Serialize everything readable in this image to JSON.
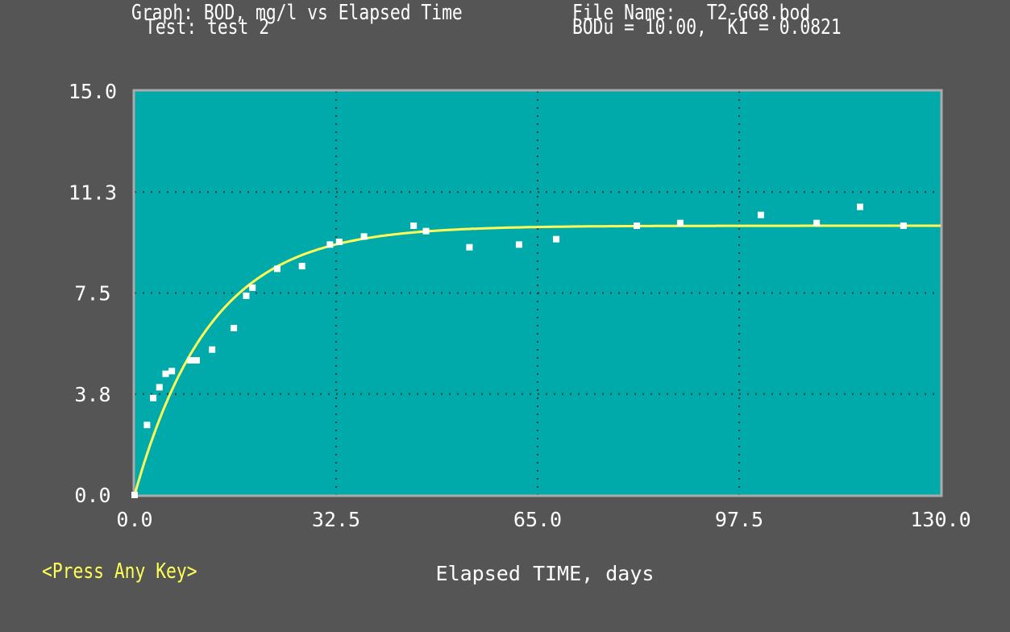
{
  "header": {
    "graph_line": "Graph: BOD, mg/l vs Elapsed Time",
    "test_line": "Test: test 2",
    "file_line": "File Name:   T2-GG8.bod",
    "params_line": "BODu = 10.00,  K1 = 0.0821"
  },
  "prompt": {
    "label": "<Press Any Key>"
  },
  "colors": {
    "background": "#555555",
    "plot_area": "#00aaaa",
    "frame": "#aaaaaa",
    "grid": "#333333",
    "fit_line": "#ffff55",
    "points": "#ffffff",
    "prompt": "#ffff55"
  },
  "chart_data": {
    "type": "scatter",
    "xlabel": "Elapsed TIME, days",
    "ylabel": "",
    "xlim": [
      0,
      130
    ],
    "ylim": [
      0,
      15
    ],
    "x_ticks": [
      "0.0",
      "32.5",
      "65.0",
      "97.5",
      "130.0"
    ],
    "y_ticks": [
      "0.0",
      "3.8",
      "7.5",
      "11.3",
      "15.0"
    ],
    "grid": true,
    "series": [
      {
        "type": "scatter",
        "points": [
          [
            0,
            0
          ],
          [
            2,
            2.6
          ],
          [
            3,
            3.6
          ],
          [
            4,
            4.0
          ],
          [
            5,
            4.5
          ],
          [
            6,
            4.6
          ],
          [
            9,
            5.0
          ],
          [
            10,
            5.0
          ],
          [
            12.5,
            5.4
          ],
          [
            16,
            6.2
          ],
          [
            18,
            7.4
          ],
          [
            19,
            7.7
          ],
          [
            23,
            8.4
          ],
          [
            27,
            8.5
          ],
          [
            31.5,
            9.3
          ],
          [
            33,
            9.4
          ],
          [
            37,
            9.6
          ],
          [
            45,
            10.0
          ],
          [
            47,
            9.8
          ],
          [
            54,
            9.2
          ],
          [
            62,
            9.3
          ],
          [
            68,
            9.5
          ],
          [
            81,
            10.0
          ],
          [
            88,
            10.1
          ],
          [
            101,
            10.4
          ],
          [
            110,
            10.1
          ],
          [
            117,
            10.7
          ],
          [
            124,
            10.0
          ]
        ]
      },
      {
        "type": "line",
        "model": "BOD = BODu * (1 - exp(-K1 * t))",
        "BODu": 10.0,
        "K1": 0.0821
      }
    ]
  }
}
